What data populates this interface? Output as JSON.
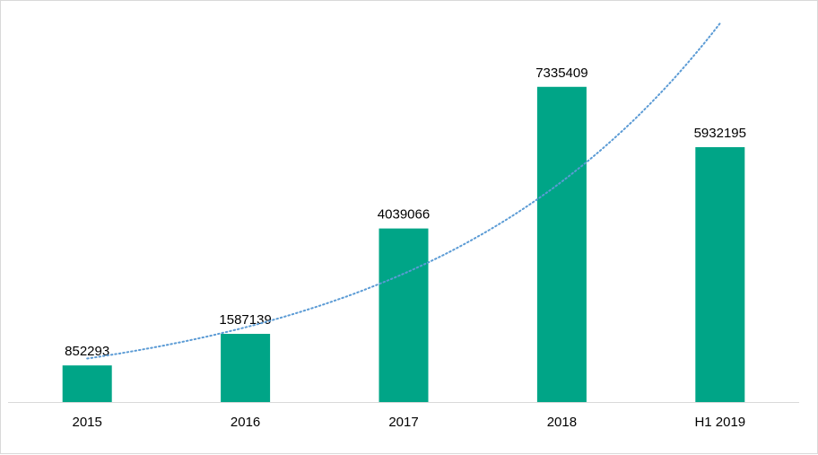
{
  "chart_data": {
    "type": "bar",
    "categories": [
      "2015",
      "2016",
      "2017",
      "2018",
      "H1 2019"
    ],
    "values": [
      852293,
      1587139,
      4039066,
      7335409,
      5932195
    ],
    "data_labels": [
      "852293",
      "1587139",
      "4039066",
      "7335409",
      "5932195"
    ],
    "ylim": [
      0,
      8500000
    ],
    "bar_color": "#00a587",
    "trendline": {
      "type": "exponential",
      "style": "dotted",
      "color": "#5b9bd5"
    },
    "grid": false,
    "legend": "none"
  }
}
